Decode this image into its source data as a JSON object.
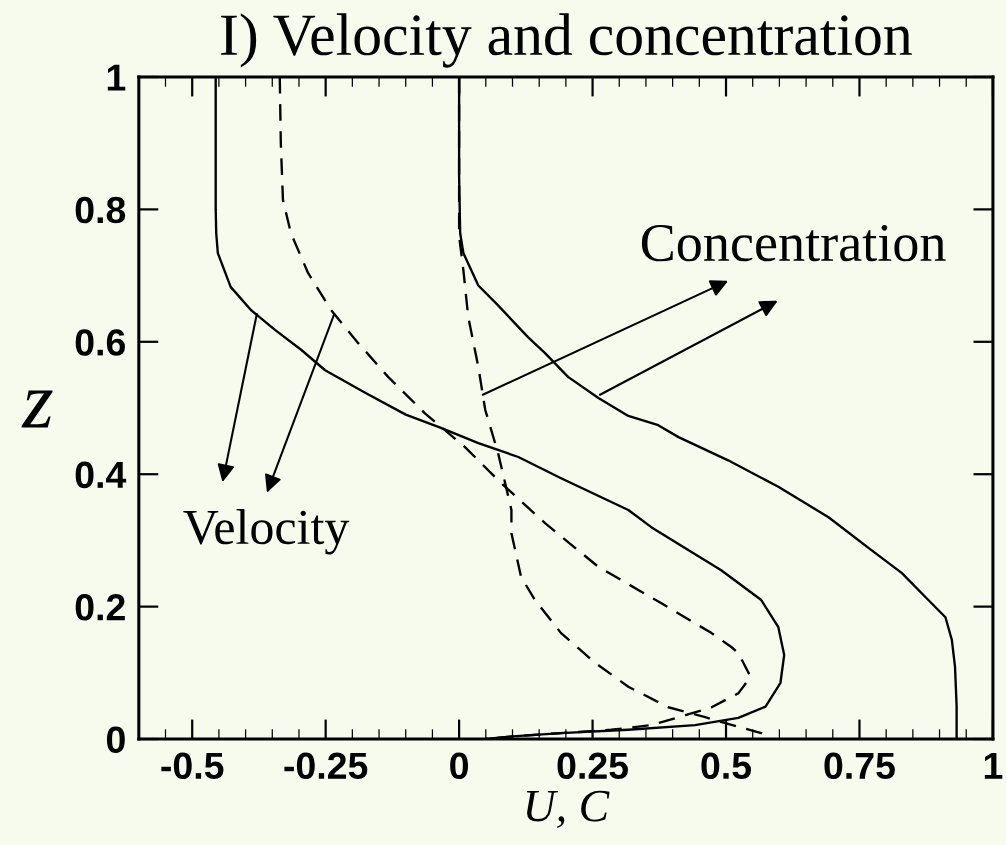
{
  "chart_data": {
    "type": "line",
    "title": "I) Velocity and concentration",
    "xlabel": "U, C",
    "ylabel": "z",
    "xlim": [
      -0.6,
      1
    ],
    "xticks": [
      -0.5,
      -0.25,
      0,
      0.25,
      0.5,
      0.75,
      1
    ],
    "ylim": [
      0,
      1
    ],
    "yticks": [
      0,
      0.2,
      0.4,
      0.6,
      0.8,
      1
    ],
    "series": [
      {
        "color": "#000000",
        "line_style": "solid",
        "x": [
          -0.456,
          -0.456,
          -0.455,
          -0.452,
          -0.428,
          -0.39,
          -0.345,
          -0.296,
          -0.251,
          -0.176,
          -0.1,
          -0.034,
          0.036,
          0.111,
          0.191,
          0.317,
          0.36,
          0.43,
          0.491,
          0.566,
          0.598,
          0.609,
          0.602,
          0.574,
          0.523,
          0.442,
          0.317,
          0.191,
          0.1,
          0.05
        ],
        "values": [
          1,
          0.8,
          0.764,
          0.734,
          0.683,
          0.648,
          0.618,
          0.588,
          0.557,
          0.523,
          0.49,
          0.47,
          0.447,
          0.426,
          0.394,
          0.346,
          0.32,
          0.285,
          0.255,
          0.21,
          0.169,
          0.127,
          0.085,
          0.049,
          0.032,
          0.021,
          0.014,
          0.009,
          0.004,
          0
        ]
      },
      {
        "color": "#000000",
        "line_style": "dashed",
        "x": [
          -0.336,
          -0.334,
          -0.33,
          -0.315,
          -0.283,
          -0.24,
          -0.189,
          -0.133,
          -0.064,
          0.011,
          0.073,
          0.161,
          0.261,
          0.379,
          0.473,
          0.51,
          0.523,
          0.546,
          0.523,
          0.473,
          0.424,
          0.36,
          0.285,
          0.191,
          0.1,
          0.05
        ],
        "values": [
          1,
          0.9,
          0.814,
          0.764,
          0.704,
          0.648,
          0.598,
          0.547,
          0.492,
          0.441,
          0.391,
          0.326,
          0.26,
          0.205,
          0.16,
          0.139,
          0.13,
          0.094,
          0.069,
          0.048,
          0.036,
          0.021,
          0.014,
          0.009,
          0.004,
          0
        ]
      },
      {
        "color": "#000000",
        "line_style": "solid",
        "x": [
          0,
          0,
          0.002,
          0.008,
          0.036,
          0.073,
          0.129,
          0.161,
          0.204,
          0.261,
          0.317,
          0.373,
          0.411,
          0.504,
          0.598,
          0.692,
          0.773,
          0.829,
          0.879,
          0.911,
          0.923,
          0.929,
          0.932,
          0.932
        ],
        "values": [
          1,
          0.85,
          0.764,
          0.734,
          0.685,
          0.655,
          0.607,
          0.583,
          0.547,
          0.515,
          0.488,
          0.474,
          0.456,
          0.421,
          0.381,
          0.335,
          0.285,
          0.251,
          0.21,
          0.184,
          0.15,
          0.109,
          0.05,
          0
        ]
      },
      {
        "color": "#000000",
        "line_style": "dashed",
        "x": [
          0,
          0,
          0.008,
          0.017,
          0.036,
          0.049,
          0.073,
          0.098,
          0.098,
          0.116,
          0.142,
          0.191,
          0.255,
          0.317,
          0.392,
          0.461,
          0.499,
          0.566,
          0.58
        ],
        "values": [
          1,
          0.76,
          0.708,
          0.638,
          0.562,
          0.497,
          0.432,
          0.346,
          0.311,
          0.245,
          0.21,
          0.16,
          0.115,
          0.079,
          0.048,
          0.033,
          0.024,
          0.009,
          0.003
        ]
      }
    ],
    "annotations": [
      {
        "text": "Velocity",
        "x": -0.379,
        "y": 0.642
      },
      {
        "text": "Concentration",
        "x": 0.264,
        "y": 0.52
      }
    ]
  }
}
